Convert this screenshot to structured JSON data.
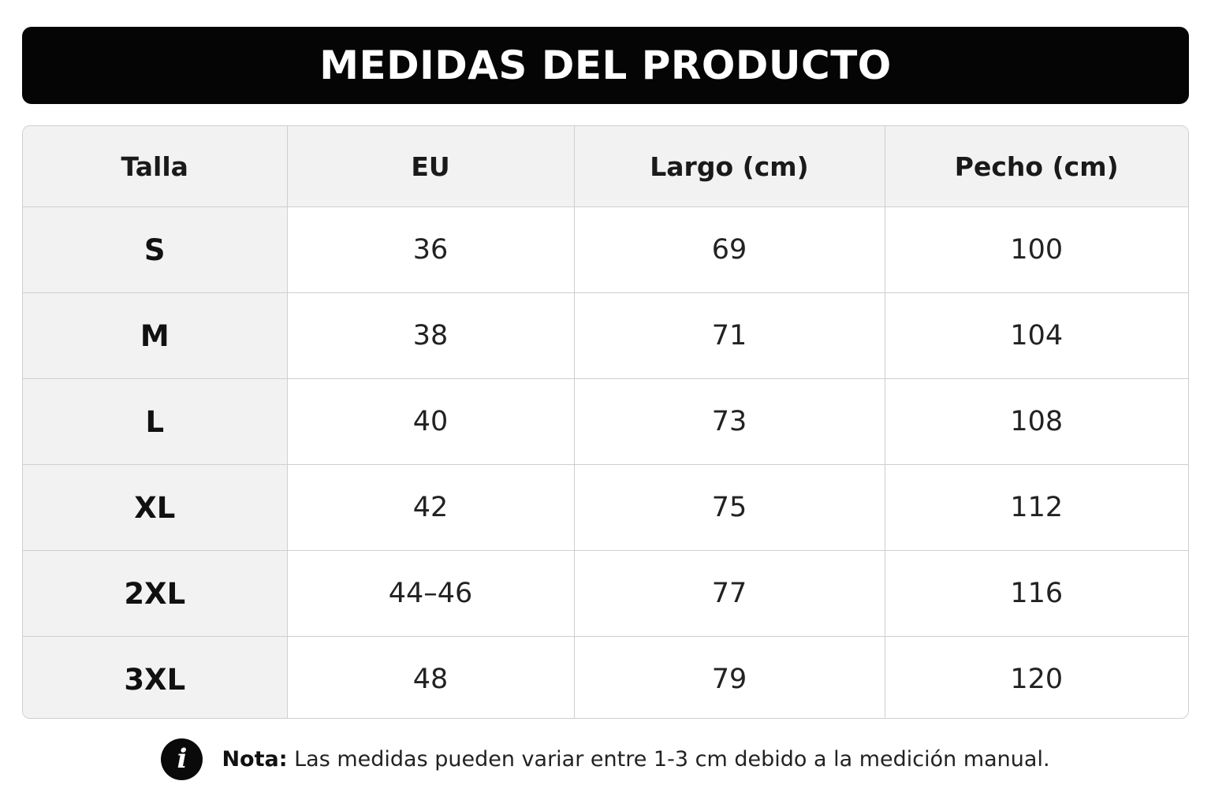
{
  "title": "MEDIDAS DEL PRODUCTO",
  "table": {
    "headers": [
      "Talla",
      "EU",
      "Largo (cm)",
      "Pecho (cm)"
    ],
    "rows": [
      {
        "talla": "S",
        "eu": "36",
        "largo": "69",
        "pecho": "100"
      },
      {
        "talla": "M",
        "eu": "38",
        "largo": "71",
        "pecho": "104"
      },
      {
        "talla": "L",
        "eu": "40",
        "largo": "73",
        "pecho": "108"
      },
      {
        "talla": "XL",
        "eu": "42",
        "largo": "75",
        "pecho": "112"
      },
      {
        "talla": "2XL",
        "eu": "44–46",
        "largo": "77",
        "pecho": "116"
      },
      {
        "talla": "3XL",
        "eu": "48",
        "largo": "79",
        "pecho": "120"
      }
    ]
  },
  "note": {
    "icon": "info-icon",
    "icon_glyph": "i",
    "label": "Nota:",
    "text": "Las medidas pueden variar entre 1-3 cm debido a la medición manual."
  },
  "colors": {
    "banner_bg": "#050505",
    "header_bg": "#f2f2f2",
    "border": "#cfcfcf"
  }
}
